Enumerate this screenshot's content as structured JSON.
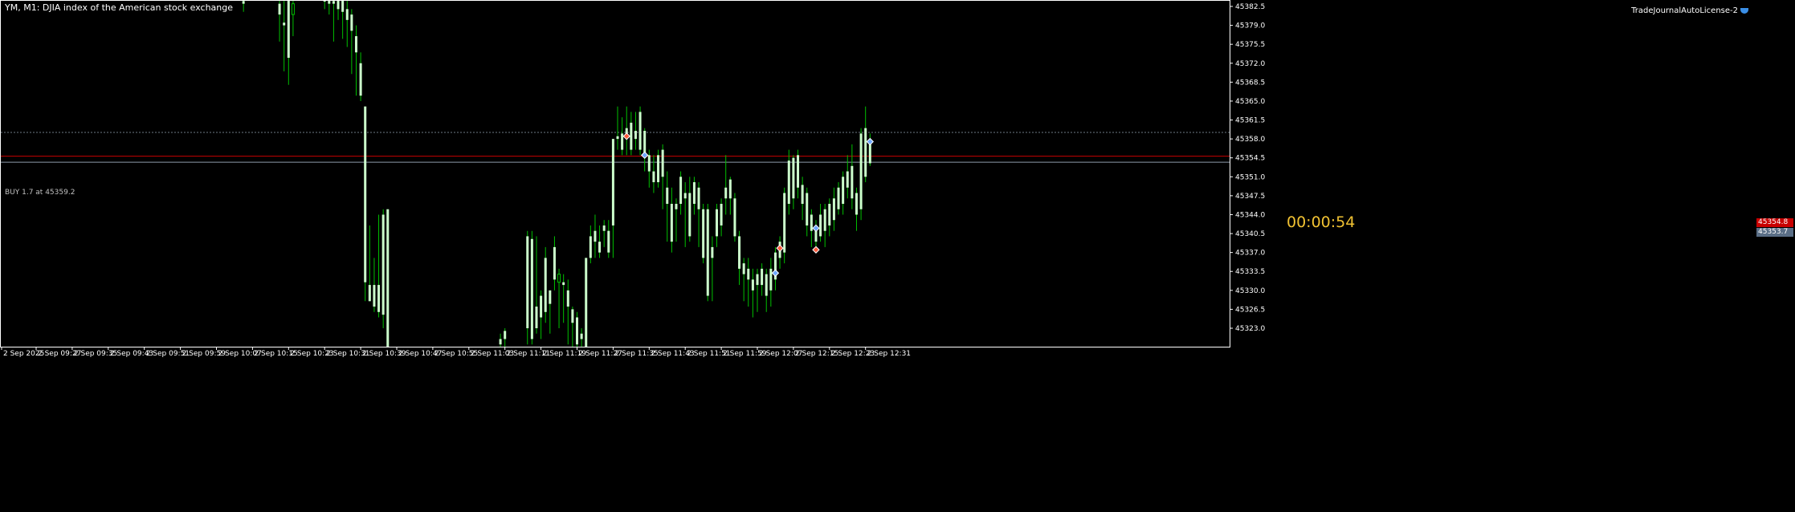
{
  "header": {
    "symbol_title": "YM, M1:  DJIA index of the American stock exchange",
    "ea_name": "TradeJournalAutoLicense-2"
  },
  "order_line": {
    "label": "BUY 1.7 at 45359.2",
    "price": 45359.2,
    "color": "#6e7a86"
  },
  "bid": {
    "label": "45354.8",
    "price": 45354.8,
    "color": "#c80000"
  },
  "ask": {
    "label": "45353.7",
    "price": 45353.7,
    "color": "#5a6e86"
  },
  "timer": {
    "label": "00:00:54"
  },
  "colors": {
    "bull_candle": "#ccffcc",
    "wick": "#00c000",
    "background": "#000000"
  },
  "chart_data": {
    "type": "candlestick",
    "ylim": [
      45319,
      45385
    ],
    "y_ticks": [
      "45382.5",
      "45379.0",
      "45375.5",
      "45372.0",
      "45368.5",
      "45365.0",
      "45361.5",
      "45358.0",
      "45354.5",
      "45351.0",
      "45347.5",
      "45344.0",
      "45340.5",
      "45337.0",
      "45333.5",
      "45330.0",
      "45326.5",
      "45323.0"
    ],
    "x_ticks": [
      "2 Sep 2025",
      "2 Sep 09:27",
      "2 Sep 09:35",
      "2 Sep 09:43",
      "2 Sep 09:51",
      "2 Sep 09:59",
      "2 Sep 10:07",
      "2 Sep 10:15",
      "2 Sep 10:23",
      "2 Sep 10:31",
      "2 Sep 10:39",
      "2 Sep 10:47",
      "2 Sep 10:55",
      "2 Sep 11:03",
      "2 Sep 11:11",
      "2 Sep 11:19",
      "2 Sep 11:27",
      "2 Sep 11:35",
      "2 Sep 11:43",
      "2 Sep 11:51",
      "2 Sep 11:59",
      "2 Sep 12:07",
      "2 Sep 12:15",
      "2 Sep 12:23",
      "2 Sep 12:31"
    ],
    "candles": [
      {
        "t": "2 Sep 10:13",
        "o": 45383.0,
        "h": 45385.0,
        "l": 45381.5,
        "c": 45383.5
      },
      {
        "t": "2 Sep 10:21",
        "o": 45381.0,
        "h": 45385.0,
        "l": 45376.0,
        "c": 45383.0
      },
      {
        "t": "2 Sep 10:22",
        "o": 45379.0,
        "h": 45384.0,
        "l": 45370.5,
        "c": 45379.5
      },
      {
        "t": "2 Sep 10:23",
        "o": 45373.0,
        "h": 45385.0,
        "l": 45368.0,
        "c": 45385.0
      },
      {
        "t": "2 Sep 10:24",
        "o": 45383.0,
        "h": 45385.0,
        "l": 45377.0,
        "c": 45381.0
      },
      {
        "t": "2 Sep 10:31",
        "o": 45384.0,
        "h": 45385.0,
        "l": 45382.0,
        "c": 45384.5
      },
      {
        "t": "2 Sep 10:32",
        "o": 45383.0,
        "h": 45385.0,
        "l": 45381.0,
        "c": 45384.0
      },
      {
        "t": "2 Sep 10:33",
        "o": 45383.0,
        "h": 45385.0,
        "l": 45376.0,
        "c": 45383.5
      },
      {
        "t": "2 Sep 10:34",
        "o": 45382.0,
        "h": 45385.0,
        "l": 45380.0,
        "c": 45384.5
      },
      {
        "t": "2 Sep 10:35",
        "o": 45381.5,
        "h": 45385.0,
        "l": 45376.5,
        "c": 45384.0
      },
      {
        "t": "2 Sep 10:36",
        "o": 45380.0,
        "h": 45385.0,
        "l": 45375.0,
        "c": 45382.0
      },
      {
        "t": "2 Sep 10:37",
        "o": 45378.0,
        "h": 45382.0,
        "l": 45370.0,
        "c": 45381.0
      },
      {
        "t": "2 Sep 10:38",
        "o": 45374.0,
        "h": 45379.0,
        "l": 45366.0,
        "c": 45377.0
      },
      {
        "t": "2 Sep 10:39",
        "o": 45366.0,
        "h": 45374.0,
        "l": 45365.0,
        "c": 45372.0
      },
      {
        "t": "2 Sep 10:40",
        "o": 45331.5,
        "h": 45364.0,
        "l": 45328.0,
        "c": 45364.0
      },
      {
        "t": "2 Sep 10:41",
        "o": 45328.0,
        "h": 45342.0,
        "l": 45328.0,
        "c": 45331.0
      },
      {
        "t": "2 Sep 10:42",
        "o": 45327.0,
        "h": 45336.0,
        "l": 45326.0,
        "c": 45331.0
      },
      {
        "t": "2 Sep 10:43",
        "o": 45326.0,
        "h": 45344.0,
        "l": 45325.0,
        "c": 45331.0
      },
      {
        "t": "2 Sep 10:44",
        "o": 45325.5,
        "h": 45345.0,
        "l": 45323.0,
        "c": 45344.0
      },
      {
        "t": "2 Sep 10:45",
        "o": 45319.0,
        "h": 45345.0,
        "l": 45319.0,
        "c": 45345.0
      },
      {
        "t": "2 Sep 11:10",
        "o": 45320.0,
        "h": 45322.0,
        "l": 45319.0,
        "c": 45321.0
      },
      {
        "t": "2 Sep 11:11",
        "o": 45321.0,
        "h": 45323.0,
        "l": 45319.0,
        "c": 45322.5
      },
      {
        "t": "2 Sep 11:16",
        "o": 45323.0,
        "h": 45341.0,
        "l": 45320.0,
        "c": 45340.0
      },
      {
        "t": "2 Sep 11:17",
        "o": 45321.0,
        "h": 45341.0,
        "l": 45320.0,
        "c": 45339.5
      },
      {
        "t": "2 Sep 11:18",
        "o": 45323.0,
        "h": 45340.0,
        "l": 45322.0,
        "c": 45327.0
      },
      {
        "t": "2 Sep 11:19",
        "o": 45325.0,
        "h": 45330.0,
        "l": 45321.0,
        "c": 45329.0
      },
      {
        "t": "2 Sep 11:20",
        "o": 45326.0,
        "h": 45338.0,
        "l": 45324.0,
        "c": 45336.0
      },
      {
        "t": "2 Sep 11:21",
        "o": 45327.5,
        "h": 45330.0,
        "l": 45322.0,
        "c": 45330.0
      },
      {
        "t": "2 Sep 11:22",
        "o": 45332.0,
        "h": 45340.0,
        "l": 45330.0,
        "c": 45338.0
      },
      {
        "t": "2 Sep 11:23",
        "o": 45333.0,
        "h": 45334.0,
        "l": 45323.0,
        "c": 45331.5
      },
      {
        "t": "2 Sep 11:24",
        "o": 45331.0,
        "h": 45333.0,
        "l": 45324.0,
        "c": 45331.5
      },
      {
        "t": "2 Sep 11:25",
        "o": 45327.0,
        "h": 45332.0,
        "l": 45320.0,
        "c": 45330.0
      },
      {
        "t": "2 Sep 11:26",
        "o": 45324.0,
        "h": 45327.0,
        "l": 45319.0,
        "c": 45326.5
      },
      {
        "t": "2 Sep 11:27",
        "o": 45320.0,
        "h": 45326.0,
        "l": 45319.0,
        "c": 45325.0
      },
      {
        "t": "2 Sep 11:28",
        "o": 45321.0,
        "h": 45323.0,
        "l": 45319.0,
        "c": 45322.0
      },
      {
        "t": "2 Sep 11:29",
        "o": 45319.0,
        "h": 45336.0,
        "l": 45319.0,
        "c": 45336.0
      },
      {
        "t": "2 Sep 11:30",
        "o": 45336.0,
        "h": 45342.0,
        "l": 45335.0,
        "c": 45340.0
      },
      {
        "t": "2 Sep 11:31",
        "o": 45339.0,
        "h": 45344.0,
        "l": 45336.0,
        "c": 45341.0
      },
      {
        "t": "2 Sep 11:32",
        "o": 45337.0,
        "h": 45342.0,
        "l": 45336.0,
        "c": 45339.0
      },
      {
        "t": "2 Sep 11:33",
        "o": 45341.0,
        "h": 45343.0,
        "l": 45338.0,
        "c": 45342.0
      },
      {
        "t": "2 Sep 11:34",
        "o": 45337.0,
        "h": 45343.0,
        "l": 45336.0,
        "c": 45341.0
      },
      {
        "t": "2 Sep 11:35",
        "o": 45342.0,
        "h": 45358.0,
        "l": 45336.0,
        "c": 45358.0
      },
      {
        "t": "2 Sep 11:36",
        "o": 45358.0,
        "h": 45364.0,
        "l": 45356.0,
        "c": 45358.5
      },
      {
        "t": "2 Sep 11:37",
        "o": 45356.0,
        "h": 45362.0,
        "l": 45355.0,
        "c": 45359.0
      },
      {
        "t": "2 Sep 11:38",
        "o": 45358.0,
        "h": 45364.0,
        "l": 45355.0,
        "c": 45360.0
      },
      {
        "t": "2 Sep 11:39",
        "o": 45356.0,
        "h": 45363.0,
        "l": 45355.0,
        "c": 45361.0
      },
      {
        "t": "2 Sep 11:40",
        "o": 45358.0,
        "h": 45363.0,
        "l": 45356.0,
        "c": 45359.5
      },
      {
        "t": "2 Sep 11:41",
        "o": 45356.0,
        "h": 45364.0,
        "l": 45355.0,
        "c": 45363.0
      },
      {
        "t": "2 Sep 11:42",
        "o": 45355.0,
        "h": 45360.0,
        "l": 45352.0,
        "c": 45359.5
      },
      {
        "t": "2 Sep 11:43",
        "o": 45352.0,
        "h": 45356.0,
        "l": 45349.0,
        "c": 45355.0
      },
      {
        "t": "2 Sep 11:44",
        "o": 45350.0,
        "h": 45355.0,
        "l": 45348.0,
        "c": 45352.0
      },
      {
        "t": "2 Sep 11:45",
        "o": 45350.0,
        "h": 45356.0,
        "l": 45349.0,
        "c": 45355.0
      },
      {
        "t": "2 Sep 11:46",
        "o": 45351.0,
        "h": 45357.0,
        "l": 45345.0,
        "c": 45356.0
      },
      {
        "t": "2 Sep 11:47",
        "o": 45346.0,
        "h": 45352.0,
        "l": 45339.0,
        "c": 45349.0
      },
      {
        "t": "2 Sep 11:48",
        "o": 45339.0,
        "h": 45349.0,
        "l": 45337.0,
        "c": 45346.0
      },
      {
        "t": "2 Sep 11:49",
        "o": 45345.0,
        "h": 45347.0,
        "l": 45339.0,
        "c": 45346.0
      },
      {
        "t": "2 Sep 11:50",
        "o": 45346.0,
        "h": 45352.0,
        "l": 45344.0,
        "c": 45351.0
      },
      {
        "t": "2 Sep 11:51",
        "o": 45347.0,
        "h": 45350.0,
        "l": 45338.0,
        "c": 45348.0
      },
      {
        "t": "2 Sep 11:52",
        "o": 45340.0,
        "h": 45351.0,
        "l": 45339.0,
        "c": 45348.0
      },
      {
        "t": "2 Sep 11:53",
        "o": 45346.0,
        "h": 45351.0,
        "l": 45344.0,
        "c": 45350.0
      },
      {
        "t": "2 Sep 11:54",
        "o": 45345.0,
        "h": 45350.0,
        "l": 45338.0,
        "c": 45349.0
      },
      {
        "t": "2 Sep 11:55",
        "o": 45336.0,
        "h": 45346.0,
        "l": 45335.0,
        "c": 45345.0
      },
      {
        "t": "2 Sep 11:56",
        "o": 45329.0,
        "h": 45346.0,
        "l": 45328.0,
        "c": 45345.0
      },
      {
        "t": "2 Sep 11:57",
        "o": 45336.0,
        "h": 45340.0,
        "l": 45328.0,
        "c": 45338.0
      },
      {
        "t": "2 Sep 11:58",
        "o": 45340.0,
        "h": 45346.0,
        "l": 45338.0,
        "c": 45345.0
      },
      {
        "t": "2 Sep 11:59",
        "o": 45342.0,
        "h": 45347.0,
        "l": 45340.0,
        "c": 45346.0
      },
      {
        "t": "2 Sep 12:00",
        "o": 45347.0,
        "h": 45355.0,
        "l": 45344.0,
        "c": 45349.0
      },
      {
        "t": "2 Sep 12:01",
        "o": 45347.0,
        "h": 45351.0,
        "l": 45344.0,
        "c": 45350.5
      },
      {
        "t": "2 Sep 12:02",
        "o": 45340.0,
        "h": 45348.0,
        "l": 45339.0,
        "c": 45347.0
      },
      {
        "t": "2 Sep 12:03",
        "o": 45334.0,
        "h": 45341.0,
        "l": 45331.0,
        "c": 45340.0
      },
      {
        "t": "2 Sep 12:04",
        "o": 45333.0,
        "h": 45336.0,
        "l": 45328.0,
        "c": 45335.0
      },
      {
        "t": "2 Sep 12:05",
        "o": 45332.0,
        "h": 45336.0,
        "l": 45327.0,
        "c": 45334.0
      },
      {
        "t": "2 Sep 12:06",
        "o": 45330.0,
        "h": 45334.0,
        "l": 45325.0,
        "c": 45332.0
      },
      {
        "t": "2 Sep 12:07",
        "o": 45331.0,
        "h": 45334.0,
        "l": 45326.0,
        "c": 45333.0
      },
      {
        "t": "2 Sep 12:08",
        "o": 45331.0,
        "h": 45335.0,
        "l": 45329.0,
        "c": 45334.0
      },
      {
        "t": "2 Sep 12:09",
        "o": 45329.0,
        "h": 45334.0,
        "l": 45326.0,
        "c": 45333.0
      },
      {
        "t": "2 Sep 12:10",
        "o": 45330.0,
        "h": 45336.0,
        "l": 45327.0,
        "c": 45334.0
      },
      {
        "t": "2 Sep 12:11",
        "o": 45332.0,
        "h": 45338.0,
        "l": 45330.0,
        "c": 45337.0
      },
      {
        "t": "2 Sep 12:12",
        "o": 45336.0,
        "h": 45340.0,
        "l": 45334.0,
        "c": 45339.0
      },
      {
        "t": "2 Sep 12:13",
        "o": 45337.0,
        "h": 45349.0,
        "l": 45335.0,
        "c": 45348.0
      },
      {
        "t": "2 Sep 12:14",
        "o": 45346.0,
        "h": 45356.0,
        "l": 45344.0,
        "c": 45354.0
      },
      {
        "t": "2 Sep 12:15",
        "o": 45347.0,
        "h": 45355.0,
        "l": 45345.0,
        "c": 45354.5
      },
      {
        "t": "2 Sep 12:16",
        "o": 45349.0,
        "h": 45356.0,
        "l": 45347.0,
        "c": 45355.0
      },
      {
        "t": "2 Sep 12:17",
        "o": 45346.0,
        "h": 45351.0,
        "l": 45343.0,
        "c": 45349.5
      },
      {
        "t": "2 Sep 12:18",
        "o": 45342.0,
        "h": 45349.0,
        "l": 45340.0,
        "c": 45348.0
      },
      {
        "t": "2 Sep 12:19",
        "o": 45341.0,
        "h": 45345.0,
        "l": 45338.0,
        "c": 45344.0
      },
      {
        "t": "2 Sep 12:20",
        "o": 45339.0,
        "h": 45343.0,
        "l": 45337.0,
        "c": 45341.0
      },
      {
        "t": "2 Sep 12:21",
        "o": 45340.0,
        "h": 45346.0,
        "l": 45339.0,
        "c": 45344.0
      },
      {
        "t": "2 Sep 12:22",
        "o": 45341.0,
        "h": 45346.0,
        "l": 45338.0,
        "c": 45345.0
      },
      {
        "t": "2 Sep 12:23",
        "o": 45342.0,
        "h": 45347.0,
        "l": 45340.0,
        "c": 45346.0
      },
      {
        "t": "2 Sep 12:24",
        "o": 45343.0,
        "h": 45349.0,
        "l": 45341.0,
        "c": 45347.0
      },
      {
        "t": "2 Sep 12:25",
        "o": 45345.0,
        "h": 45350.0,
        "l": 45344.0,
        "c": 45349.0
      },
      {
        "t": "2 Sep 12:26",
        "o": 45346.0,
        "h": 45352.0,
        "l": 45344.0,
        "c": 45351.0
      },
      {
        "t": "2 Sep 12:27",
        "o": 45349.0,
        "h": 45355.0,
        "l": 45347.0,
        "c": 45352.0
      },
      {
        "t": "2 Sep 12:28",
        "o": 45347.0,
        "h": 45357.0,
        "l": 45345.0,
        "c": 45353.0
      },
      {
        "t": "2 Sep 12:29",
        "o": 45344.0,
        "h": 45349.0,
        "l": 45341.0,
        "c": 45348.0
      },
      {
        "t": "2 Sep 12:30",
        "o": 45345.0,
        "h": 45360.0,
        "l": 45343.0,
        "c": 45359.0
      },
      {
        "t": "2 Sep 12:31",
        "o": 45351.0,
        "h": 45364.0,
        "l": 45350.0,
        "c": 45360.0
      },
      {
        "t": "2 Sep 12:32",
        "o": 45353.5,
        "h": 45359.0,
        "l": 45353.0,
        "c": 45358.0
      }
    ],
    "trade_marks": [
      {
        "t": "2 Sep 11:38",
        "price": 45358.5,
        "kind": "buy"
      },
      {
        "t": "2 Sep 11:42",
        "price": 45355.0,
        "kind": "sell"
      },
      {
        "t": "2 Sep 12:11",
        "price": 45333.2,
        "kind": "sell"
      },
      {
        "t": "2 Sep 12:12",
        "price": 45337.8,
        "kind": "buy"
      },
      {
        "t": "2 Sep 12:20",
        "price": 45341.5,
        "kind": "sell"
      },
      {
        "t": "2 Sep 12:20",
        "price": 45337.5,
        "kind": "buy"
      },
      {
        "t": "2 Sep 12:32",
        "price": 45357.5,
        "kind": "sell"
      }
    ]
  }
}
